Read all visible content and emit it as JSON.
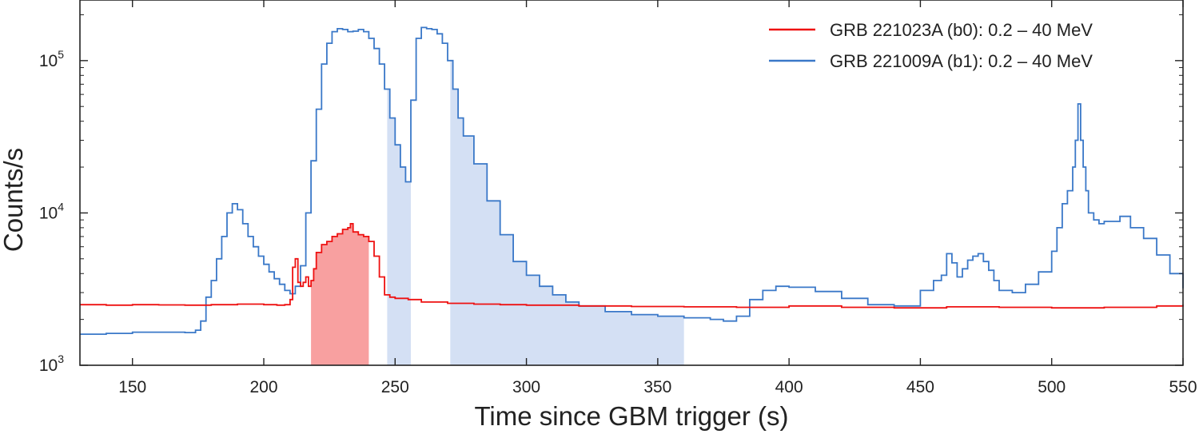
{
  "chart_data": {
    "type": "line",
    "xlabel": "Time since GBM trigger (s)",
    "ylabel": "Counts/s",
    "xlim": [
      130,
      550
    ],
    "ylim": [
      1000,
      250000
    ],
    "yscale": "log",
    "grid": false,
    "legend_position": "top-right",
    "x_ticks": [
      150,
      200,
      250,
      300,
      350,
      400,
      450,
      500,
      550
    ],
    "y_ticks": [
      {
        "value": 1000,
        "base": "10",
        "exp": "3"
      },
      {
        "value": 10000,
        "base": "10",
        "exp": "4"
      },
      {
        "value": 100000,
        "base": "10",
        "exp": "5"
      }
    ],
    "series": [
      {
        "name": "GRB 221023A (b0): 0.2 – 40 MeV",
        "color": "#ee1111",
        "fill_color": "#f8a0a0",
        "shaded_intervals": [
          [
            218,
            240
          ]
        ],
        "x": [
          130,
          140,
          150,
          160,
          170,
          180,
          190,
          200,
          205,
          208,
          210,
          211,
          212,
          213,
          214,
          215,
          216,
          217,
          218,
          219,
          220,
          222,
          224,
          226,
          228,
          230,
          232,
          233,
          234,
          236,
          238,
          240,
          242,
          244,
          246,
          248,
          250,
          255,
          260,
          270,
          280,
          290,
          300,
          320,
          340,
          360,
          380,
          400,
          420,
          440,
          460,
          480,
          500,
          520,
          540,
          550
        ],
        "y": [
          2500,
          2480,
          2500,
          2490,
          2480,
          2500,
          2520,
          2500,
          2480,
          2500,
          2700,
          4400,
          5000,
          3500,
          3300,
          3500,
          3800,
          3300,
          3600,
          4300,
          5500,
          6200,
          6500,
          7000,
          7300,
          7800,
          8000,
          8500,
          7500,
          7200,
          7000,
          6500,
          5200,
          3800,
          2900,
          2800,
          2750,
          2700,
          2600,
          2550,
          2520,
          2500,
          2480,
          2450,
          2430,
          2420,
          2400,
          2450,
          2400,
          2380,
          2420,
          2400,
          2380,
          2400,
          2450,
          2500
        ]
      },
      {
        "name": "GRB 221009A (b1): 0.2 – 40 MeV",
        "color": "#3a78c8",
        "fill_color": "#d4e0f4",
        "shaded_intervals": [
          [
            247,
            256
          ],
          [
            271,
            360
          ]
        ],
        "x": [
          130,
          140,
          150,
          160,
          170,
          174,
          176,
          178,
          180,
          182,
          184,
          186,
          188,
          190,
          192,
          194,
          196,
          198,
          200,
          202,
          204,
          206,
          208,
          210,
          212,
          214,
          216,
          218,
          220,
          222,
          224,
          226,
          228,
          230,
          232,
          234,
          236,
          238,
          240,
          242,
          244,
          246,
          248,
          250,
          252,
          254,
          256,
          258,
          260,
          262,
          264,
          266,
          268,
          270,
          272,
          274,
          276,
          280,
          285,
          290,
          295,
          300,
          305,
          310,
          315,
          320,
          330,
          340,
          350,
          360,
          370,
          375,
          380,
          385,
          390,
          395,
          400,
          410,
          420,
          430,
          440,
          450,
          455,
          458,
          460,
          462,
          464,
          466,
          468,
          470,
          472,
          474,
          476,
          478,
          480,
          485,
          490,
          495,
          500,
          502,
          504,
          506,
          508,
          509,
          510,
          511,
          512,
          513,
          514,
          516,
          518,
          520,
          524,
          526,
          530,
          535,
          540,
          545,
          550
        ],
        "y": [
          1600,
          1620,
          1650,
          1650,
          1640,
          1700,
          1950,
          2800,
          3600,
          5000,
          7000,
          10000,
          11500,
          10500,
          8500,
          7000,
          6000,
          5200,
          4600,
          4100,
          3700,
          3400,
          3100,
          2950,
          3300,
          4500,
          10000,
          22000,
          48000,
          95000,
          130000,
          155000,
          162000,
          160000,
          155000,
          156000,
          160000,
          155000,
          140000,
          120000,
          95000,
          65000,
          42000,
          28000,
          20000,
          16000,
          55000,
          140000,
          165000,
          162000,
          160000,
          150000,
          130000,
          100000,
          65000,
          42000,
          32000,
          21000,
          12000,
          7200,
          4800,
          3900,
          3300,
          2900,
          2600,
          2450,
          2250,
          2150,
          2100,
          2050,
          2000,
          1950,
          2100,
          2700,
          3100,
          3300,
          3250,
          3050,
          2750,
          2500,
          2450,
          3100,
          3600,
          3900,
          5400,
          4700,
          3800,
          4300,
          4900,
          5200,
          5400,
          4800,
          4200,
          3600,
          3100,
          3000,
          3400,
          4100,
          5600,
          8000,
          11500,
          14000,
          20000,
          30000,
          52000,
          30000,
          20000,
          14000,
          10000,
          9000,
          8500,
          8800,
          8800,
          9500,
          8000,
          6800,
          5300,
          4000,
          3200
        ]
      }
    ]
  }
}
